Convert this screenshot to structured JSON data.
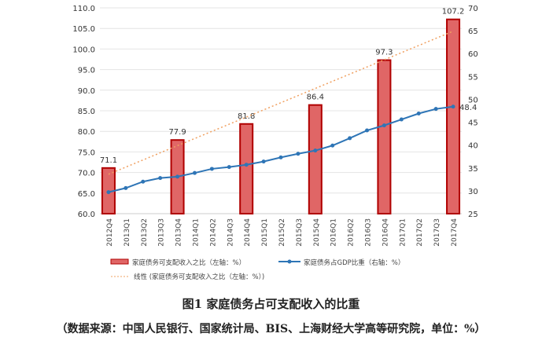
{
  "chart_data": {
    "type": "bar",
    "categories": [
      "2012Q4",
      "2013Q1",
      "2013Q2",
      "2013Q3",
      "2013Q4",
      "2014Q1",
      "2014Q2",
      "2014Q3",
      "2014Q4",
      "2015Q1",
      "2015Q2",
      "2015Q3",
      "2015Q4",
      "2016Q1",
      "2016Q2",
      "2016Q3",
      "2016Q4",
      "2017Q1",
      "2017Q2",
      "2017Q3",
      "2017Q4"
    ],
    "series": [
      {
        "name": "家庭债务可支配收入之比（左轴：%）",
        "type": "bar",
        "axis": "left",
        "values": [
          71.1,
          null,
          null,
          null,
          77.9,
          null,
          null,
          null,
          81.8,
          null,
          null,
          null,
          86.4,
          null,
          null,
          null,
          97.3,
          null,
          null,
          null,
          107.2
        ],
        "color": "#e06666"
      },
      {
        "name": "家庭债务占GDP比重（右轴：%）",
        "type": "line",
        "axis": "right",
        "values": [
          29.7,
          30.6,
          32.0,
          32.8,
          33.1,
          33.9,
          34.8,
          35.2,
          35.7,
          36.4,
          37.3,
          38.1,
          38.8,
          39.9,
          41.5,
          43.2,
          44.3,
          45.6,
          46.9,
          47.9,
          48.4
        ],
        "color": "#2e75b6",
        "end_label": "48.4"
      },
      {
        "name": "线性 (家庭债务可支配收入之比（左轴：%）)",
        "type": "trendline",
        "axis": "left",
        "color": "#f0a060"
      }
    ],
    "bar_labels": [
      "71.1",
      "77.9",
      "81.8",
      "86.4",
      "97.3",
      "107.2"
    ],
    "ylim_left": [
      60,
      110
    ],
    "yticks_left": [
      "60.0",
      "65.0",
      "70.0",
      "75.0",
      "80.0",
      "85.0",
      "90.0",
      "95.0",
      "100.0",
      "105.0",
      "110.0"
    ],
    "ylim_right": [
      25,
      70
    ],
    "yticks_right": [
      "25",
      "30",
      "35",
      "40",
      "45",
      "50",
      "55",
      "60",
      "65",
      "70"
    ],
    "grid": true,
    "legend": "bottom"
  },
  "title": "图1  家庭债务占可支配收入的比重",
  "source": "（数据来源：中国人民银行、国家统计局、BIS、上海财经大学高等研究院，单位：%）"
}
